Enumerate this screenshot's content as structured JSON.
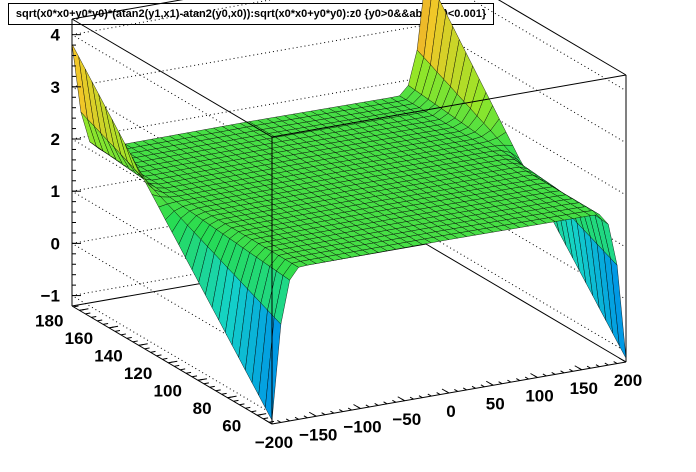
{
  "title": "sqrt(x0*x0+y0*y0)*(atan2(y1,x1)-atan2(y0,x0)):sqrt(x0*x0+y0*y0):z0 {y0>0&&abs(x0)<0.001}",
  "chart_data": {
    "type": "surface",
    "title": "sqrt(x0*x0+y0*y0)*(atan2(y1,x1)-atan2(y0,x0)):sqrt(x0*x0+y0*y0):z0 {y0>0&&abs(x0)<0.001}",
    "x_axis": {
      "ticks": [
        -200,
        -150,
        -100,
        -50,
        0,
        50,
        100,
        150,
        200
      ],
      "range": [
        -200,
        200
      ]
    },
    "y_axis": {
      "ticks": [
        60,
        80,
        100,
        120,
        140,
        160,
        180
      ],
      "range": [
        50,
        185
      ]
    },
    "z_axis": {
      "ticks": [
        -1,
        0,
        1,
        2,
        3,
        4
      ],
      "range": [
        -1.2,
        4.3
      ]
    },
    "grid": true,
    "colormap": "rainbow",
    "colors": {
      "low": "#0a1fc8",
      "mid": "#1ed23c",
      "high": "#d2463c"
    },
    "surface_samples": [
      {
        "y": 60,
        "x": [
          -200,
          -150,
          -100,
          -50,
          0,
          50,
          100,
          150,
          200
        ],
        "z": [
          -1.1,
          0.9,
          1.5,
          1.7,
          1.75,
          1.7,
          1.5,
          0.9,
          -1.1
        ]
      },
      {
        "y": 120,
        "x": [
          -200,
          -150,
          -100,
          -50,
          0,
          50,
          100,
          150,
          200
        ],
        "z": [
          2.5,
          1.8,
          1.7,
          1.7,
          1.75,
          1.7,
          1.7,
          1.8,
          2.5
        ]
      },
      {
        "y": 180,
        "x": [
          -200,
          -150,
          -100,
          -50,
          0,
          50,
          100,
          150,
          200
        ],
        "z": [
          3.8,
          2.2,
          1.8,
          1.75,
          1.75,
          1.75,
          1.8,
          2.2,
          4.1
        ]
      }
    ]
  }
}
